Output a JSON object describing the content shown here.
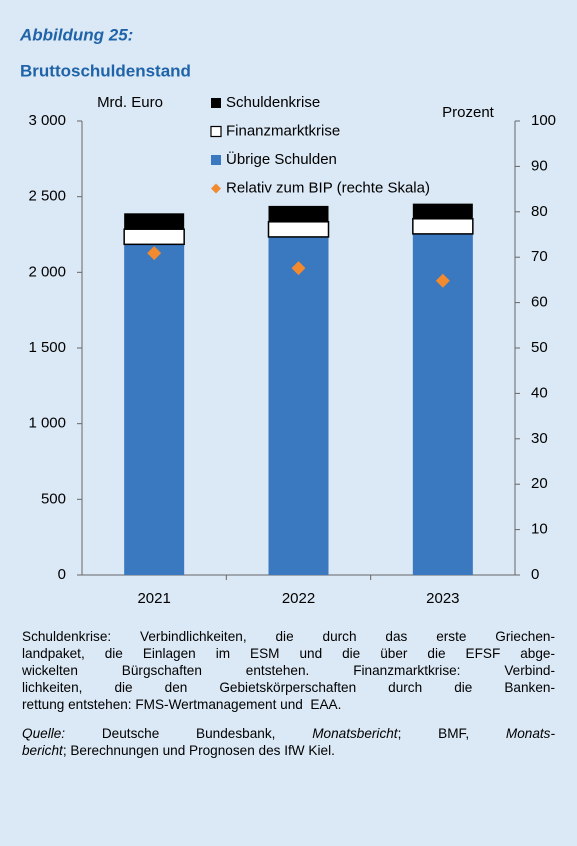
{
  "chart_data": {
    "type": "bar",
    "stacked": true,
    "title": "Abbildung 25:",
    "subtitle": "Bruttoschuldenstand",
    "ylabel": "Mrd. Euro",
    "y2label": "Prozent",
    "categories": [
      "2021",
      "2022",
      "2023"
    ],
    "series": [
      {
        "name": "Übrige Schulden",
        "color": "#3a78c0",
        "values": [
          2185,
          2234,
          2254
        ]
      },
      {
        "name": "Finanzmarktkrise",
        "color": "#ffffff",
        "values": [
          100,
          100,
          100
        ]
      },
      {
        "name": "Schuldenkrise",
        "color": "#000000",
        "values": [
          105,
          105,
          100
        ]
      },
      {
        "name": "Relativ zum BIP (rechte Skala)",
        "color": "#f28a30",
        "type": "scatter",
        "axis": "y2",
        "values": [
          70.9,
          67.6,
          64.8
        ]
      }
    ],
    "ylim": [
      0,
      3000
    ],
    "yticks": [
      0,
      500,
      {
        "value": 1000,
        "label": "1 000"
      },
      {
        "value": 1500,
        "label": "1 500"
      },
      {
        "value": 2000,
        "label": "2 000"
      },
      {
        "value": 2500,
        "label": "2 500"
      },
      {
        "value": 3000,
        "label": "3 000"
      }
    ],
    "y2lim": [
      0,
      100
    ],
    "y2ticks": [
      0,
      10,
      20,
      30,
      40,
      50,
      60,
      70,
      80,
      90,
      100
    ],
    "grid": false
  },
  "note": {
    "lines": [
      "Schuldenkrise: Verbindlichkeiten, die durch das erste Griechen-",
      "landpaket, die Einlagen im ESM und die über die EFSF abge-",
      "wickelten Bürgschaften entstehen. Finanzmarktkrise: Verbind-",
      "lichkeiten, die den Gebietskörperschaften durch die Banken-",
      "rettung entstehen: FMS-Wertmanagement und  EAA."
    ]
  },
  "source": {
    "lines": [
      [
        {
          "text": "Quelle:",
          "italic": true
        },
        {
          "text": " Deutsche Bundesbank, ",
          "italic": false
        },
        {
          "text": "Monatsbericht",
          "italic": true
        },
        {
          "text": "; BMF, ",
          "italic": false
        },
        {
          "text": "Monats-",
          "italic": true
        }
      ],
      [
        {
          "text": "bericht",
          "italic": true
        },
        {
          "text": "; Berechnungen und Prognosen des IfW Kiel.",
          "italic": false
        }
      ]
    ]
  }
}
